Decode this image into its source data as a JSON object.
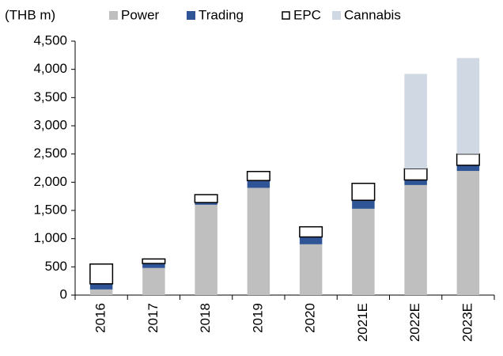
{
  "chart_data": {
    "type": "stacked_bar",
    "unit_label": "(THB m)",
    "categories": [
      "2016",
      "2017",
      "2018",
      "2019",
      "2020",
      "2021E",
      "2022E",
      "2023E"
    ],
    "series": [
      {
        "name": "Power",
        "color": "#bfbfbf",
        "values": [
          100,
          480,
          1600,
          1900,
          900,
          1530,
          1950,
          2200
        ]
      },
      {
        "name": "Trading",
        "color": "#2f5597",
        "values": [
          100,
          80,
          40,
          130,
          130,
          150,
          90,
          100
        ]
      },
      {
        "name": "EPC",
        "color": "#ffffff",
        "edgecolor": "#000000",
        "values": [
          350,
          80,
          140,
          160,
          180,
          300,
          200,
          200
        ]
      },
      {
        "name": "Cannabis",
        "color": "#d0d8e4",
        "values": [
          0,
          0,
          0,
          0,
          0,
          0,
          1680,
          1700
        ]
      }
    ],
    "ylim": [
      0,
      4500
    ],
    "yticks": [
      0,
      {
        "value": 500,
        "label": "500"
      },
      {
        "value": 1000,
        "label": "1,000"
      },
      {
        "value": 1500,
        "label": "1,500"
      },
      {
        "value": 2000,
        "label": "2,000"
      },
      {
        "value": 2500,
        "label": "2,500"
      },
      {
        "value": 3000,
        "label": "3,000"
      },
      {
        "value": 3500,
        "label": "3,500"
      },
      {
        "value": 4000,
        "label": "4,000"
      },
      {
        "value": 4500,
        "label": "4,500"
      }
    ],
    "legend": "top"
  }
}
